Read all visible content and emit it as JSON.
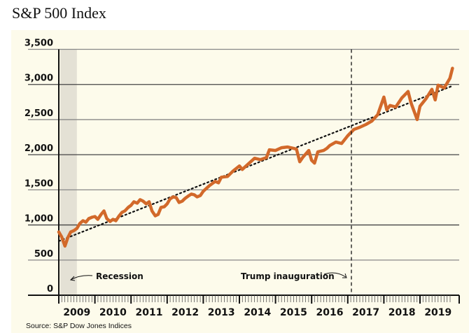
{
  "chart_data": {
    "type": "line",
    "title": "S&P 500 Index",
    "source": "Source: S&P Dow Jones Indices",
    "xlabel": "",
    "ylabel": "",
    "ylim": [
      0,
      3500
    ],
    "xlim": [
      2009.0,
      2019.9
    ],
    "yticks": [
      0,
      500,
      1000,
      1500,
      2000,
      2500,
      3000,
      3500
    ],
    "ytick_labels": [
      "0",
      "500",
      "1,000",
      "1,500",
      "2,000",
      "2,500",
      "3,000",
      "3,500"
    ],
    "xtick_labels": [
      "2009",
      "2010",
      "2011",
      "2012",
      "2013",
      "2014",
      "2015",
      "2016",
      "2017",
      "2018",
      "2019"
    ],
    "grid": true,
    "colors": {
      "line": "#d2692a",
      "recession": "#e4e1d5",
      "trend": "#111111",
      "background": "#fdfbeb"
    },
    "series": [
      {
        "name": "S&P 500",
        "x": [
          2009.0,
          2009.08,
          2009.17,
          2009.25,
          2009.33,
          2009.42,
          2009.5,
          2009.58,
          2009.67,
          2009.75,
          2009.83,
          2009.92,
          2010.0,
          2010.08,
          2010.17,
          2010.25,
          2010.33,
          2010.42,
          2010.5,
          2010.58,
          2010.67,
          2010.75,
          2010.83,
          2010.92,
          2011.0,
          2011.08,
          2011.17,
          2011.25,
          2011.33,
          2011.42,
          2011.5,
          2011.58,
          2011.67,
          2011.75,
          2011.83,
          2011.92,
          2012.0,
          2012.08,
          2012.17,
          2012.25,
          2012.33,
          2012.42,
          2012.5,
          2012.58,
          2012.67,
          2012.75,
          2012.83,
          2012.92,
          2013.0,
          2013.17,
          2013.33,
          2013.42,
          2013.5,
          2013.67,
          2013.83,
          2014.0,
          2014.08,
          2014.25,
          2014.42,
          2014.58,
          2014.75,
          2014.83,
          2015.0,
          2015.17,
          2015.33,
          2015.5,
          2015.58,
          2015.67,
          2015.75,
          2015.92,
          2016.0,
          2016.08,
          2016.17,
          2016.33,
          2016.42,
          2016.5,
          2016.67,
          2016.83,
          2017.0,
          2017.17,
          2017.33,
          2017.5,
          2017.67,
          2017.83,
          2018.0,
          2018.08,
          2018.17,
          2018.33,
          2018.5,
          2018.67,
          2018.75,
          2018.92,
          2019.0,
          2019.17,
          2019.33,
          2019.42,
          2019.5,
          2019.67,
          2019.83,
          2019.9
        ],
        "values": [
          900,
          830,
          700,
          820,
          900,
          920,
          950,
          1020,
          1060,
          1040,
          1090,
          1110,
          1120,
          1080,
          1150,
          1200,
          1090,
          1050,
          1080,
          1060,
          1130,
          1180,
          1200,
          1250,
          1280,
          1330,
          1310,
          1360,
          1340,
          1300,
          1330,
          1200,
          1130,
          1150,
          1250,
          1260,
          1300,
          1370,
          1400,
          1390,
          1320,
          1340,
          1380,
          1410,
          1440,
          1430,
          1400,
          1420,
          1480,
          1560,
          1620,
          1600,
          1680,
          1690,
          1770,
          1840,
          1790,
          1870,
          1950,
          1930,
          1960,
          2070,
          2060,
          2100,
          2110,
          2090,
          2080,
          1900,
          1960,
          2060,
          1920,
          1880,
          2040,
          2060,
          2090,
          2130,
          2180,
          2160,
          2270,
          2360,
          2390,
          2430,
          2480,
          2570,
          2820,
          2640,
          2700,
          2680,
          2810,
          2900,
          2740,
          2500,
          2690,
          2800,
          2930,
          2780,
          2990,
          2950,
          3090,
          3230
        ]
      },
      {
        "name": "Trend",
        "x": [
          2009.0,
          2019.9
        ],
        "values": [
          770,
          2980
        ]
      }
    ],
    "annotations": [
      {
        "text": "Recession",
        "x": 2009.0,
        "shade_range": [
          2009.0,
          2009.5
        ]
      },
      {
        "text": "Trump inauguration",
        "x": 2017.05,
        "style": "dashed-vertical"
      }
    ]
  }
}
